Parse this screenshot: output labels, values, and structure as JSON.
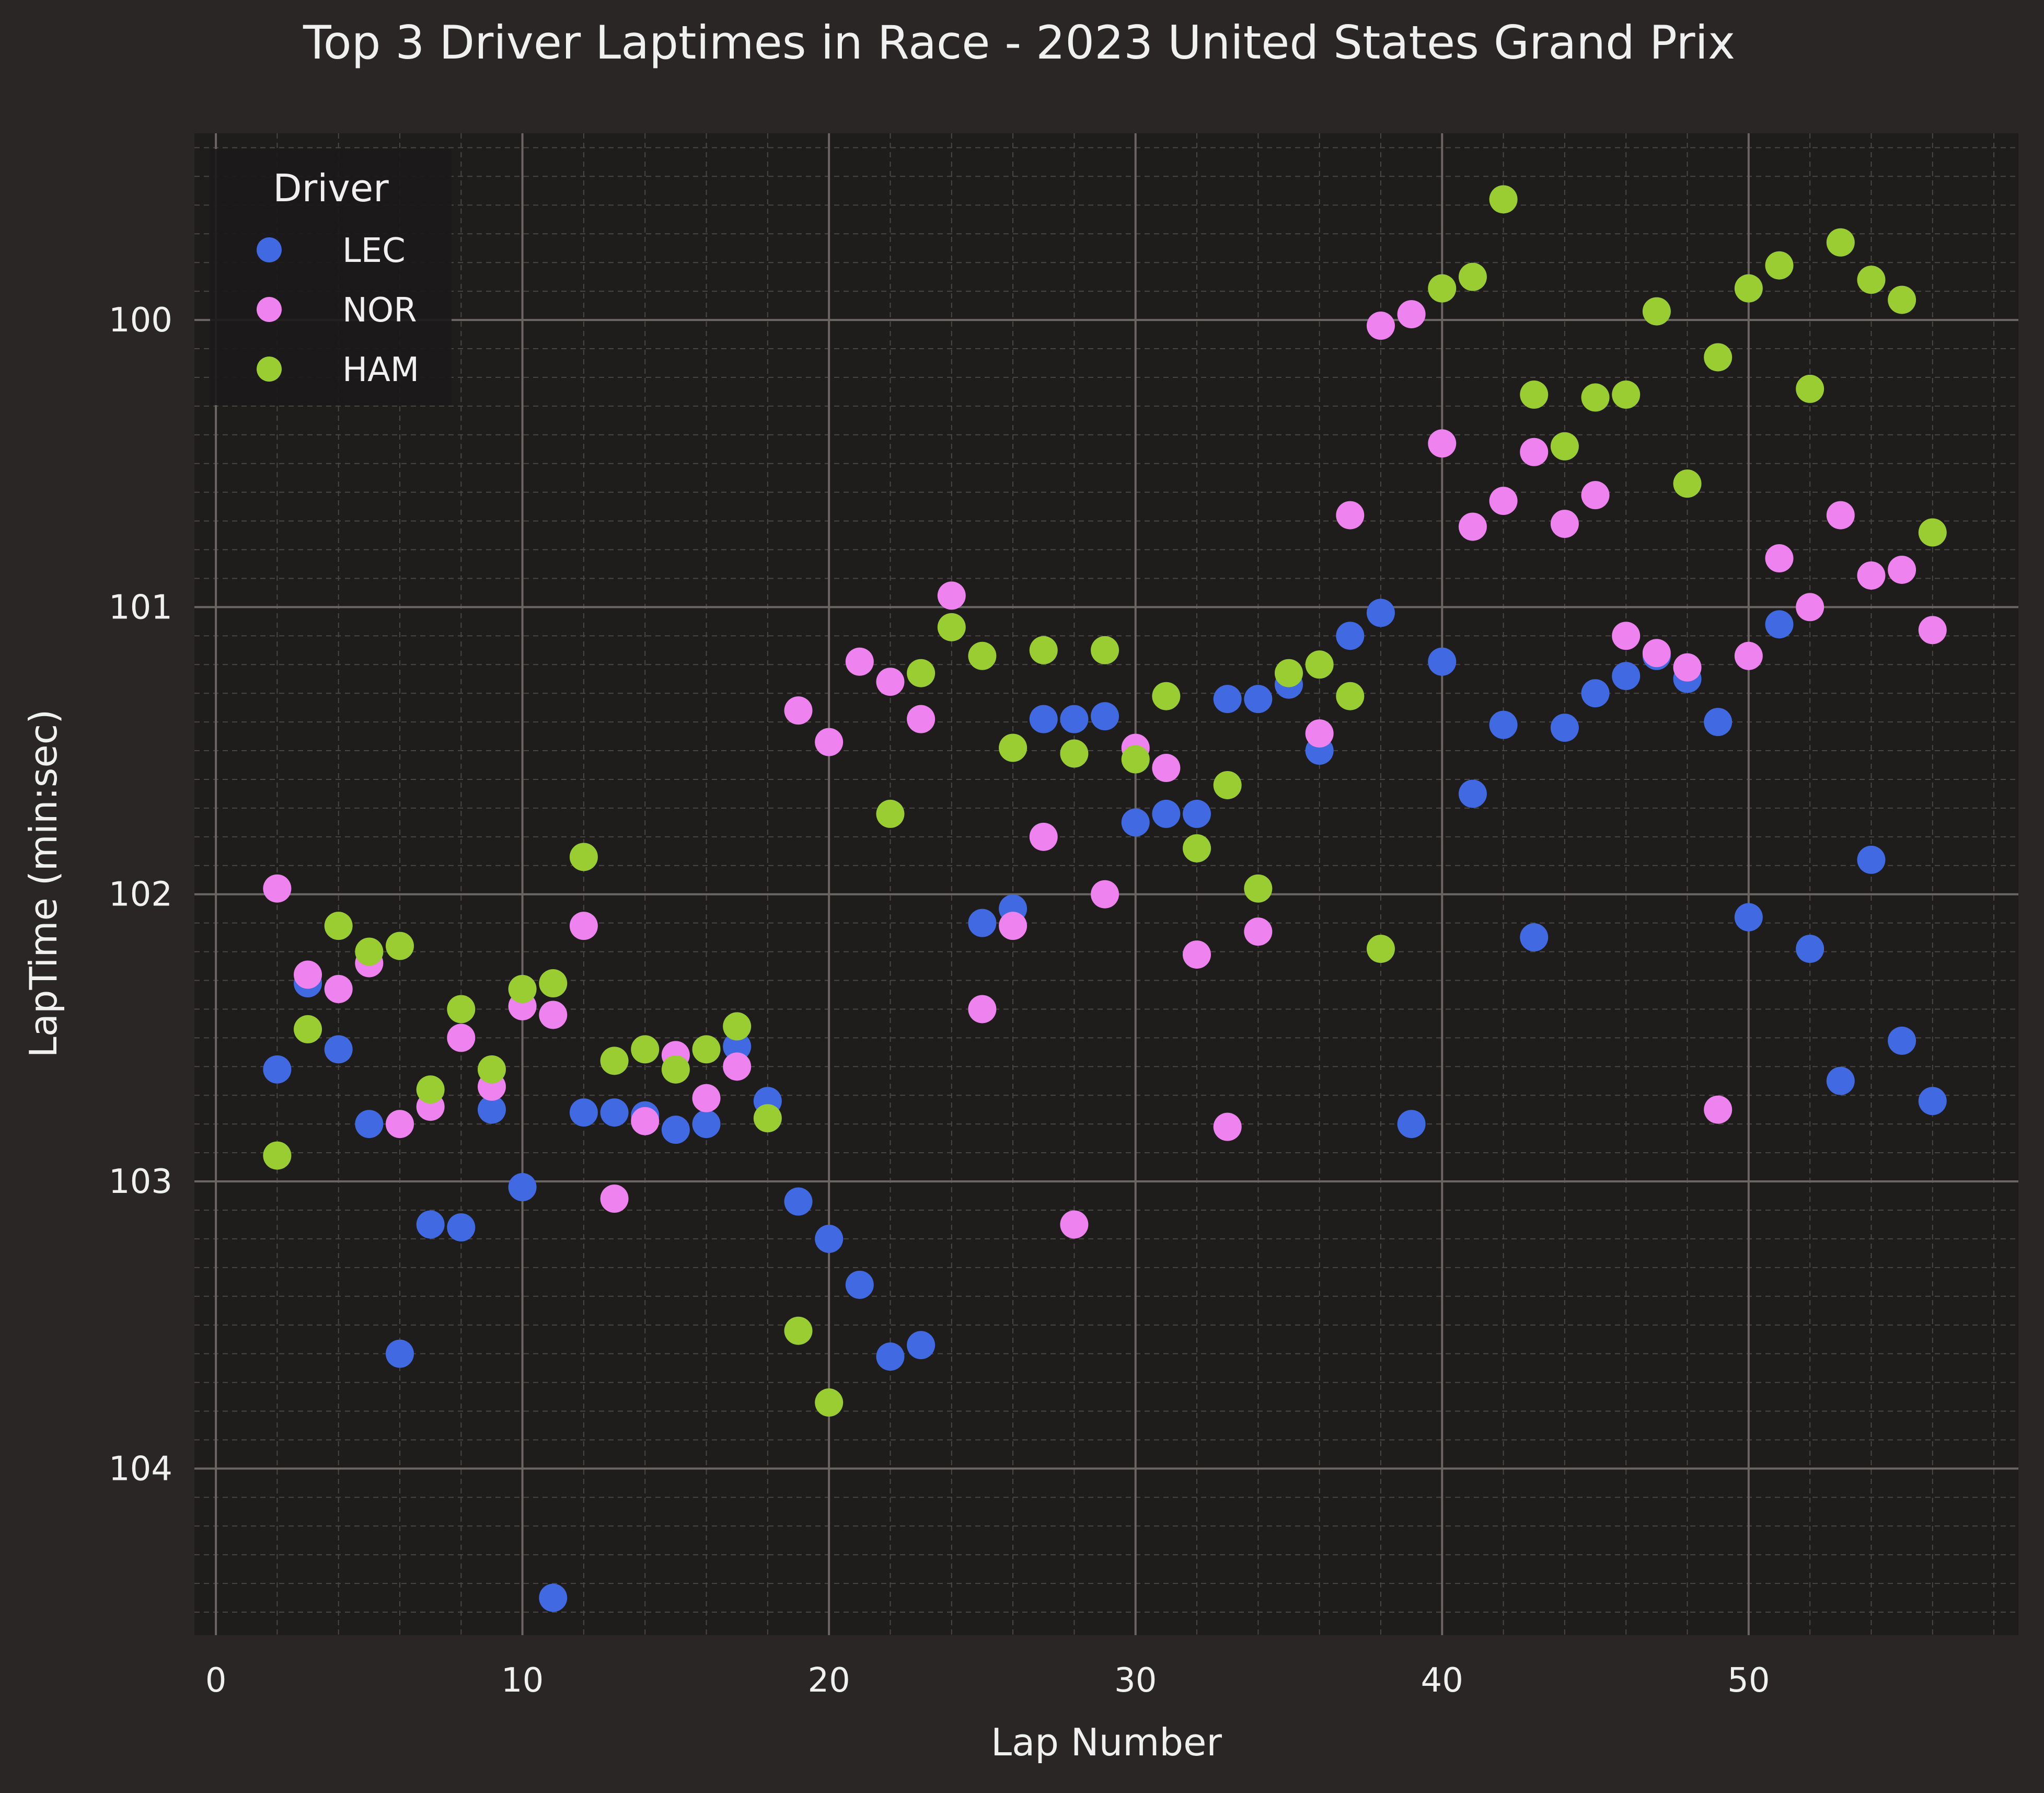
{
  "chart_data": {
    "type": "scatter",
    "title": "Top 3 Driver Laptimes in Race - 2023 United States Grand Prix",
    "xlabel": "Lap Number",
    "ylabel": "LapTime (min:sec)",
    "xlim": [
      -0.7,
      58.8
    ],
    "ylim": [
      104.58,
      99.35
    ],
    "y_inverted": true,
    "x_ticks": [
      0,
      10,
      20,
      30,
      40,
      50
    ],
    "y_ticks": [
      100,
      101,
      102,
      103,
      104
    ],
    "grid": true,
    "minor_grid": true,
    "legend": {
      "title": "Driver",
      "position": "top-left"
    },
    "colors": {
      "background": "#292625",
      "plot_background": "#1e1d1c"
    },
    "series": [
      {
        "name": "LEC",
        "color": "#4169e1",
        "points": [
          [
            2,
            102.61
          ],
          [
            3,
            102.31
          ],
          [
            4,
            102.54
          ],
          [
            5,
            102.8
          ],
          [
            6,
            103.6
          ],
          [
            7,
            103.15
          ],
          [
            8,
            103.16
          ],
          [
            9,
            102.75
          ],
          [
            10,
            103.02
          ],
          [
            11,
            104.45
          ],
          [
            12,
            102.76
          ],
          [
            13,
            102.76
          ],
          [
            14,
            102.77
          ],
          [
            15,
            102.82
          ],
          [
            16,
            102.8
          ],
          [
            17,
            102.53
          ],
          [
            18,
            102.72
          ],
          [
            19,
            103.07
          ],
          [
            20,
            103.2
          ],
          [
            21,
            103.36
          ],
          [
            22,
            103.61
          ],
          [
            23,
            103.57
          ],
          [
            24,
            null
          ],
          [
            25,
            102.1
          ],
          [
            26,
            102.05
          ],
          [
            27,
            101.39
          ],
          [
            28,
            101.39
          ],
          [
            29,
            101.38
          ],
          [
            30,
            101.75
          ],
          [
            31,
            101.72
          ],
          [
            32,
            101.72
          ],
          [
            33,
            101.32
          ],
          [
            34,
            101.32
          ],
          [
            35,
            101.27
          ],
          [
            36,
            101.5
          ],
          [
            37,
            101.1
          ],
          [
            38,
            101.02
          ],
          [
            39,
            102.8
          ],
          [
            40,
            101.19
          ],
          [
            41,
            101.65
          ],
          [
            42,
            101.41
          ],
          [
            43,
            102.15
          ],
          [
            44,
            101.42
          ],
          [
            45,
            101.3
          ],
          [
            46,
            101.24
          ],
          [
            47,
            101.17
          ],
          [
            48,
            101.25
          ],
          [
            49,
            101.4
          ],
          [
            50,
            102.08
          ],
          [
            51,
            101.06
          ],
          [
            52,
            102.19
          ],
          [
            53,
            102.65
          ],
          [
            54,
            101.88
          ],
          [
            55,
            102.51
          ],
          [
            56,
            102.72
          ]
        ]
      },
      {
        "name": "NOR",
        "color": "#ee82ee",
        "points": [
          [
            2,
            101.98
          ],
          [
            3,
            102.28
          ],
          [
            4,
            102.33
          ],
          [
            5,
            102.24
          ],
          [
            6,
            102.8
          ],
          [
            7,
            102.74
          ],
          [
            8,
            102.5
          ],
          [
            9,
            102.67
          ],
          [
            10,
            102.39
          ],
          [
            11,
            102.42
          ],
          [
            12,
            102.11
          ],
          [
            13,
            103.06
          ],
          [
            14,
            102.79
          ],
          [
            15,
            102.56
          ],
          [
            16,
            102.71
          ],
          [
            17,
            102.6
          ],
          [
            19,
            101.36
          ],
          [
            20,
            101.47
          ],
          [
            21,
            101.19
          ],
          [
            22,
            101.26
          ],
          [
            23,
            101.39
          ],
          [
            24,
            100.96
          ],
          [
            25,
            102.4
          ],
          [
            26,
            102.11
          ],
          [
            27,
            101.8
          ],
          [
            28,
            103.15
          ],
          [
            29,
            102.0
          ],
          [
            30,
            101.49
          ],
          [
            31,
            101.56
          ],
          [
            32,
            102.21
          ],
          [
            33,
            102.81
          ],
          [
            34,
            102.13
          ],
          [
            36,
            101.44
          ],
          [
            37,
            100.68
          ],
          [
            38,
            100.02
          ],
          [
            39,
            99.98
          ],
          [
            40,
            100.43
          ],
          [
            41,
            100.72
          ],
          [
            42,
            100.63
          ],
          [
            43,
            100.46
          ],
          [
            44,
            100.71
          ],
          [
            45,
            100.61
          ],
          [
            46,
            101.1
          ],
          [
            47,
            101.16
          ],
          [
            48,
            101.21
          ],
          [
            49,
            102.75
          ],
          [
            50,
            101.17
          ],
          [
            51,
            100.83
          ],
          [
            52,
            101.0
          ],
          [
            53,
            100.68
          ],
          [
            54,
            100.89
          ],
          [
            55,
            100.87
          ],
          [
            56,
            101.08
          ]
        ]
      },
      {
        "name": "HAM",
        "color": "#9acd32",
        "points": [
          [
            2,
            102.91
          ],
          [
            3,
            102.47
          ],
          [
            4,
            102.11
          ],
          [
            5,
            102.2
          ],
          [
            6,
            102.18
          ],
          [
            7,
            102.68
          ],
          [
            8,
            102.4
          ],
          [
            9,
            102.61
          ],
          [
            10,
            102.33
          ],
          [
            11,
            102.31
          ],
          [
            12,
            101.87
          ],
          [
            13,
            102.58
          ],
          [
            14,
            102.54
          ],
          [
            15,
            102.61
          ],
          [
            16,
            102.54
          ],
          [
            17,
            102.46
          ],
          [
            18,
            102.78
          ],
          [
            19,
            103.52
          ],
          [
            20,
            103.77
          ],
          [
            22,
            101.72
          ],
          [
            23,
            101.23
          ],
          [
            24,
            101.07
          ],
          [
            25,
            101.17
          ],
          [
            26,
            101.49
          ],
          [
            27,
            101.15
          ],
          [
            28,
            101.51
          ],
          [
            29,
            101.15
          ],
          [
            30,
            101.53
          ],
          [
            31,
            101.31
          ],
          [
            32,
            101.84
          ],
          [
            33,
            101.62
          ],
          [
            34,
            101.98
          ],
          [
            35,
            101.23
          ],
          [
            36,
            101.2
          ],
          [
            37,
            101.31
          ],
          [
            38,
            102.19
          ],
          [
            40,
            99.89
          ],
          [
            41,
            99.85
          ],
          [
            42,
            99.58
          ],
          [
            43,
            100.26
          ],
          [
            44,
            100.44
          ],
          [
            45,
            100.27
          ],
          [
            46,
            100.26
          ],
          [
            47,
            99.97
          ],
          [
            48,
            100.57
          ],
          [
            49,
            100.13
          ],
          [
            50,
            99.89
          ],
          [
            51,
            99.81
          ],
          [
            52,
            100.24
          ],
          [
            53,
            99.73
          ],
          [
            54,
            99.86
          ],
          [
            55,
            99.93
          ],
          [
            56,
            100.74
          ]
        ]
      }
    ]
  }
}
